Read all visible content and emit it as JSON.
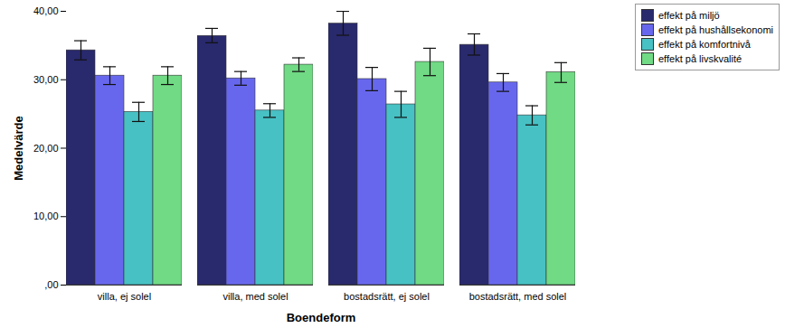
{
  "chart_data": {
    "type": "bar",
    "xlabel": "Boendeform",
    "ylabel": "Medelvärde",
    "categories": [
      "villa, ej solel",
      "villa, med solel",
      "bostadsrätt, ej solel",
      "bostadsrätt, med solel"
    ],
    "series": [
      {
        "name": "effekt på miljö",
        "color": "#29296e",
        "values": [
          34.3,
          36.4,
          38.2,
          35.1
        ],
        "error_low": [
          32.9,
          35.4,
          36.5,
          33.6
        ],
        "error_high": [
          35.7,
          37.5,
          40.0,
          36.7
        ]
      },
      {
        "name": "effekt på hushållsekonomi",
        "color": "#6767ee",
        "values": [
          30.6,
          30.2,
          30.1,
          29.6
        ],
        "error_low": [
          29.3,
          29.2,
          28.4,
          28.3
        ],
        "error_high": [
          31.9,
          31.2,
          31.8,
          30.9
        ]
      },
      {
        "name": "effekt på komfortnivå",
        "color": "#47c1c4",
        "values": [
          25.3,
          25.5,
          26.4,
          24.8
        ],
        "error_low": [
          23.9,
          24.5,
          24.5,
          23.4
        ],
        "error_high": [
          26.7,
          26.5,
          28.3,
          26.2
        ]
      },
      {
        "name": "effekt på livskvalité",
        "color": "#70da84",
        "values": [
          30.6,
          32.2,
          32.6,
          31.1
        ],
        "error_low": [
          29.3,
          31.2,
          30.6,
          29.6
        ],
        "error_high": [
          31.9,
          33.2,
          34.6,
          32.5
        ]
      }
    ],
    "ylim": [
      0,
      40
    ],
    "yticks": [
      {
        "value": 0,
        "label": ",00"
      },
      {
        "value": 10,
        "label": "10,00"
      },
      {
        "value": 20,
        "label": "20,00"
      },
      {
        "value": 30,
        "label": "30,00"
      },
      {
        "value": 40,
        "label": "40,00"
      }
    ],
    "grid": false,
    "legend": "top-right"
  }
}
